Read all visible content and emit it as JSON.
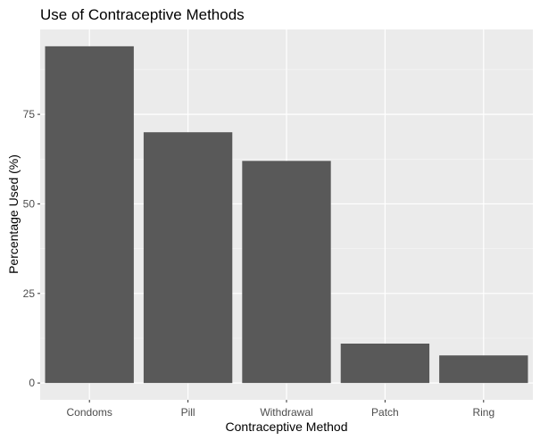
{
  "colors": {
    "panel_background": "#ebebeb",
    "grid_major": "#ffffff",
    "grid_minor": "#f5f5f5",
    "bar_fill": "#595959",
    "tick_mark": "#333333",
    "tick_label": "#4d4d4d",
    "text": "#000000"
  },
  "chart_data": {
    "type": "bar",
    "title": "Use of Contraceptive Methods",
    "xlabel": "Contraceptive Method",
    "ylabel": "Percentage Used (%)",
    "categories": [
      "Condoms",
      "Pill",
      "Withdrawal",
      "Patch",
      "Ring"
    ],
    "values": [
      94,
      70,
      62,
      11,
      7.7
    ],
    "ylim": [
      -4.7,
      98.7
    ],
    "yticks": [
      0,
      25,
      50,
      75
    ],
    "ytick_labels": [
      "0",
      "25",
      "50",
      "75"
    ],
    "grid": true,
    "legend": "none"
  }
}
